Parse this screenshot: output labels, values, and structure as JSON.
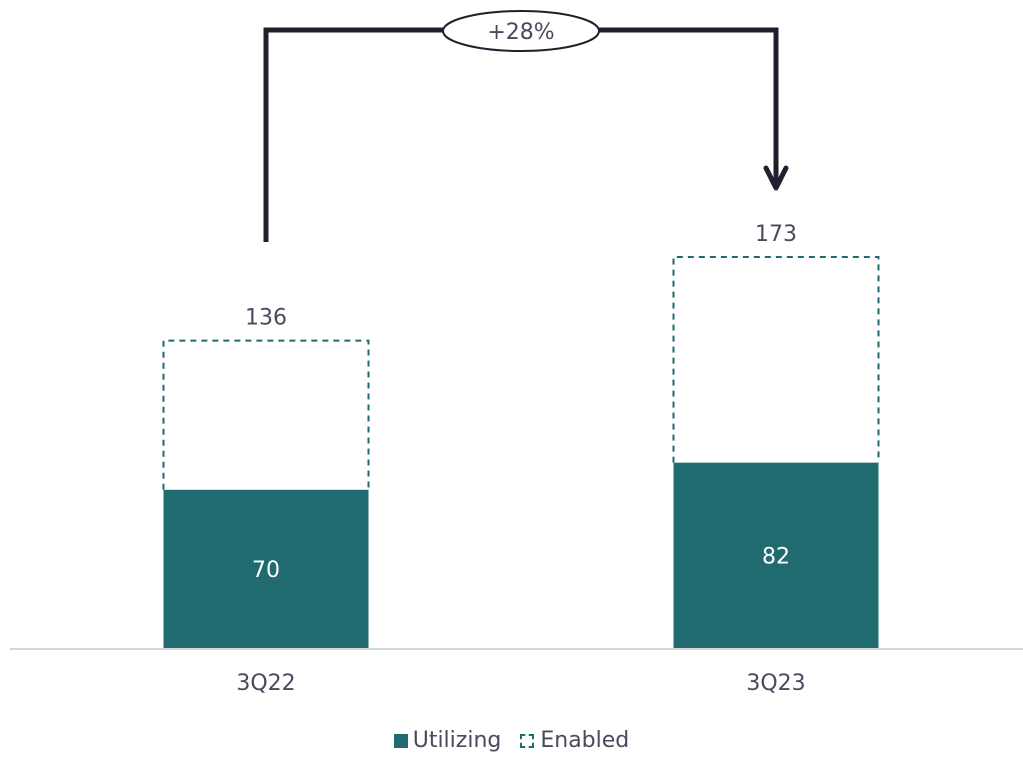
{
  "chart_data": {
    "type": "bar",
    "stacked": "overlay",
    "categories": [
      "3Q22",
      "3Q23"
    ],
    "series": [
      {
        "name": "Utilizing",
        "values": [
          70,
          82
        ],
        "style": "solid",
        "color": "#206b70"
      },
      {
        "name": "Enabled",
        "values": [
          136,
          173
        ],
        "style": "dashed-outline",
        "color": "#206b70"
      }
    ],
    "annotation": {
      "label": "+28%",
      "from": "3Q22",
      "to": "3Q23"
    },
    "ylim": [
      0,
      200
    ],
    "grid": false,
    "legend_position": "bottom"
  },
  "colors": {
    "bar": "#206b70",
    "text": "#4a4a5e",
    "axis": "#d8d8d8",
    "arrow": "#1f1f2e"
  }
}
